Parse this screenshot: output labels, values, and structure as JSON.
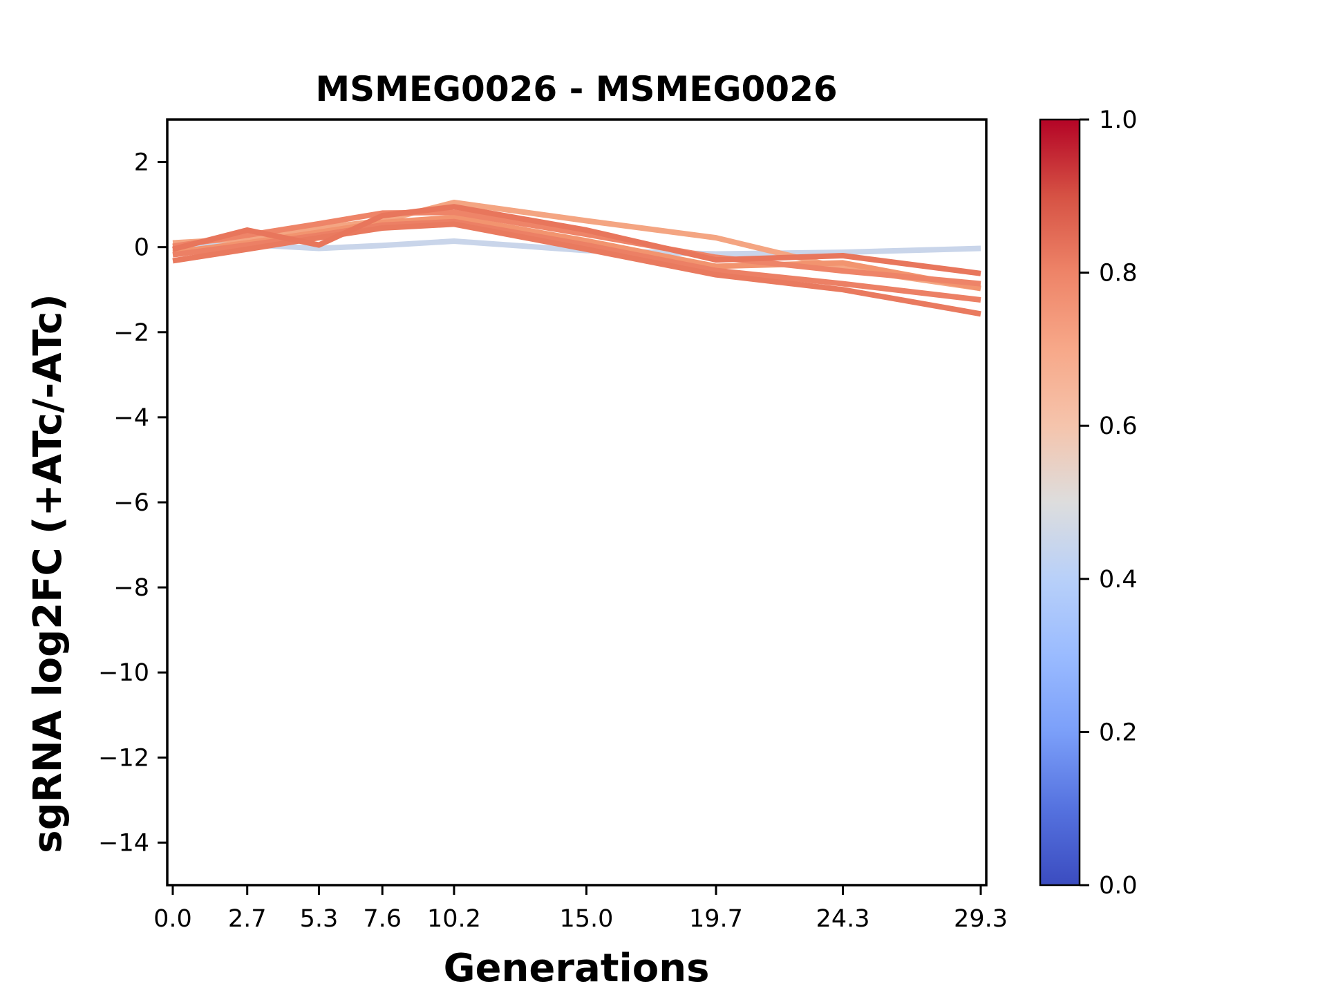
{
  "figure": {
    "title": "MSMEG0026 - MSMEG0026",
    "xlabel": "Generations",
    "ylabel": "sgRNA log2FC (+ATc/-ATc)"
  },
  "chart_data": {
    "type": "line",
    "title": "MSMEG0026 - MSMEG0026",
    "xlabel": "Generations",
    "ylabel": "sgRNA log2FC (+ATc/-ATc)",
    "x": [
      0.0,
      2.7,
      5.3,
      7.6,
      10.2,
      15.0,
      19.7,
      24.3,
      29.3
    ],
    "xtick_labels": [
      "0.0",
      "2.7",
      "5.3",
      "7.6",
      "10.2",
      "15.0",
      "19.7",
      "24.3",
      "29.3"
    ],
    "ytick_values": [
      2,
      0,
      -2,
      -4,
      -6,
      -8,
      -10,
      -12,
      -14
    ],
    "ytick_labels": [
      "2",
      "0",
      "−2",
      "−4",
      "−6",
      "−8",
      "−10",
      "−12",
      "−14"
    ],
    "xlim": [
      -0.2,
      29.5
    ],
    "ylim": [
      -15,
      3
    ],
    "grid": false,
    "legend": "none",
    "line_width": 8,
    "series": [
      {
        "name": "line-blue",
        "color": "#c9d5ea",
        "values": [
          0.0,
          0.06,
          -0.03,
          0.04,
          0.14,
          -0.08,
          -0.16,
          -0.12,
          -0.03
        ]
      },
      {
        "name": "line-orange-1",
        "color": "#f4a582",
        "values": [
          0.1,
          0.2,
          0.45,
          0.62,
          1.05,
          0.62,
          0.22,
          -0.5,
          -0.97
        ]
      },
      {
        "name": "line-orange-2",
        "color": "#f2946f",
        "values": [
          -0.12,
          0.1,
          0.35,
          0.58,
          0.7,
          0.15,
          -0.45,
          -0.37,
          -0.97
        ]
      },
      {
        "name": "line-orange-3",
        "color": "#ec8065",
        "values": [
          -0.18,
          0.05,
          0.28,
          0.52,
          0.6,
          0.05,
          -0.55,
          -0.86,
          -1.24
        ]
      },
      {
        "name": "line-orange-4",
        "color": "#ee8468",
        "values": [
          0.02,
          0.28,
          0.55,
          0.8,
          0.82,
          0.3,
          -0.24,
          -0.56,
          -0.86
        ]
      },
      {
        "name": "line-orange-5",
        "color": "#e97a5f",
        "values": [
          -0.32,
          -0.05,
          0.22,
          0.45,
          0.54,
          -0.05,
          -0.65,
          -1.0,
          -1.57
        ]
      },
      {
        "name": "line-orange-6",
        "color": "#e8765c",
        "values": [
          -0.05,
          0.4,
          0.05,
          0.74,
          0.95,
          0.4,
          -0.3,
          -0.2,
          -0.62
        ]
      }
    ],
    "colorbar": {
      "cmap": "coolwarm",
      "range": [
        0.0,
        1.0
      ],
      "tick_values": [
        1.0,
        0.8,
        0.6,
        0.4,
        0.2,
        0.0
      ],
      "tick_labels": [
        "1.0",
        "0.8",
        "0.6",
        "0.4",
        "0.2",
        "0.0"
      ],
      "gradient": [
        {
          "pos": 0.0,
          "color": "#3b4cc0"
        },
        {
          "pos": 0.1,
          "color": "#5572df"
        },
        {
          "pos": 0.2,
          "color": "#7b9ff9"
        },
        {
          "pos": 0.3,
          "color": "#9abbff"
        },
        {
          "pos": 0.4,
          "color": "#b8d0f9"
        },
        {
          "pos": 0.5,
          "color": "#dddddd"
        },
        {
          "pos": 0.6,
          "color": "#f5c4ac"
        },
        {
          "pos": 0.7,
          "color": "#f7a889"
        },
        {
          "pos": 0.8,
          "color": "#ee8468"
        },
        {
          "pos": 0.9,
          "color": "#d65244"
        },
        {
          "pos": 1.0,
          "color": "#b40426"
        }
      ]
    }
  },
  "layout_colors": {
    "spine": "#000000",
    "background": "#ffffff"
  }
}
